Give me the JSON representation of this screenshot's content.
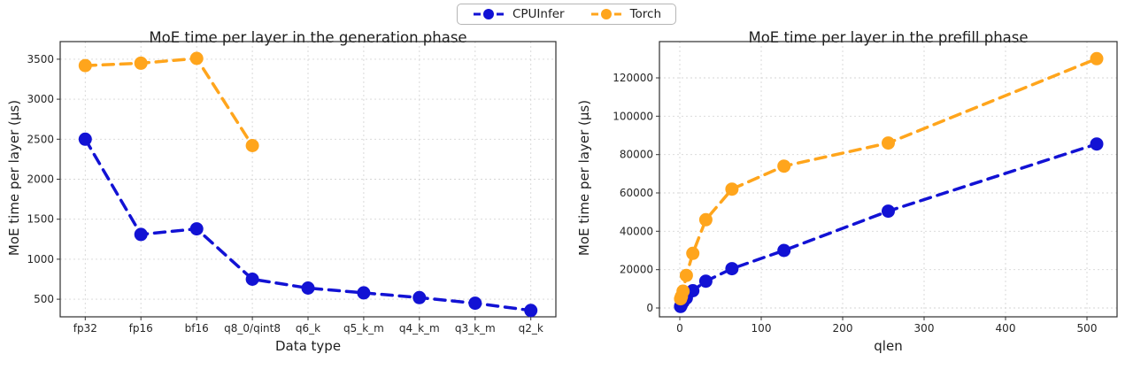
{
  "legend": {
    "items": [
      {
        "label": "CPUInfer",
        "color": "#1212d4"
      },
      {
        "label": "Torch",
        "color": "#ffa51c"
      }
    ]
  },
  "chart_data": [
    {
      "type": "line",
      "title": "MoE time per layer in the generation phase",
      "xlabel": "Data type",
      "ylabel": "MoE time per layer (µs)",
      "categories": [
        "fp32",
        "fp16",
        "bf16",
        "q8_0/qint8",
        "q6_k",
        "q5_k_m",
        "q4_k_m",
        "q3_k_m",
        "q2_k"
      ],
      "yticks": [
        500,
        1000,
        1500,
        2000,
        2500,
        3000,
        3500
      ],
      "ylim": [
        280,
        3720
      ],
      "line_style": "dashed",
      "marker": "circle",
      "grid": true,
      "legend_position": "top-center-figure",
      "series": [
        {
          "name": "CPUInfer",
          "color": "#1212d4",
          "values": [
            2500,
            1310,
            1380,
            750,
            640,
            580,
            520,
            450,
            360
          ]
        },
        {
          "name": "Torch",
          "color": "#ffa51c",
          "values": [
            3420,
            3450,
            3510,
            2420,
            null,
            null,
            null,
            null,
            null
          ]
        }
      ]
    },
    {
      "type": "line",
      "title": "MoE time per layer in the prefill phase",
      "xlabel": "qlen",
      "ylabel": "MoE time per layer (µs)",
      "x": [
        1,
        2,
        4,
        8,
        16,
        32,
        64,
        128,
        256,
        512
      ],
      "xticks": [
        0,
        100,
        200,
        300,
        400,
        500
      ],
      "xlim": [
        -25,
        537
      ],
      "yticks": [
        0,
        20000,
        40000,
        60000,
        80000,
        100000,
        120000
      ],
      "ylim": [
        -4600,
        138900
      ],
      "line_style": "dashed",
      "marker": "circle",
      "grid": true,
      "series": [
        {
          "name": "CPUInfer",
          "color": "#1212d4",
          "values": [
            800,
            1800,
            3200,
            5200,
            9000,
            14000,
            20500,
            30000,
            50500,
            85500
          ]
        },
        {
          "name": "Torch",
          "color": "#ffa51c",
          "values": [
            4800,
            6000,
            8800,
            17000,
            28500,
            46000,
            62000,
            74000,
            86000,
            130000
          ]
        }
      ]
    }
  ]
}
